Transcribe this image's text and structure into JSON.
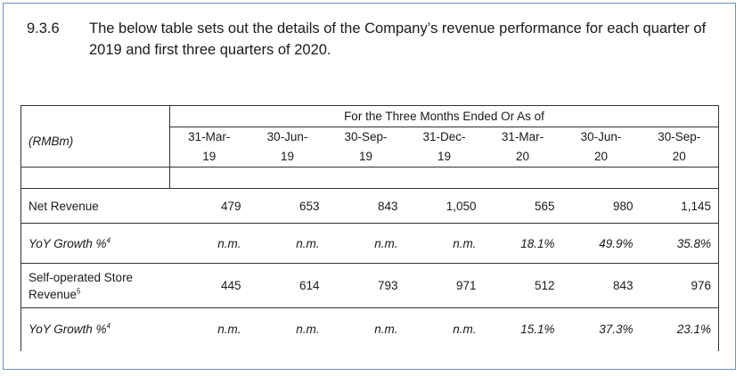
{
  "paragraph": {
    "number": "9.3.6",
    "text": "The below table sets out the details of the Company’s revenue performance for each quarter of 2019 and first three quarters of 2020."
  },
  "table": {
    "unit_label": "(RMBm)",
    "period_header": "For the Three Months Ended Or As of",
    "columns": [
      {
        "line1": "31-Mar-",
        "line2": "19"
      },
      {
        "line1": "30-Jun-",
        "line2": "19"
      },
      {
        "line1": "30-Sep-",
        "line2": "19"
      },
      {
        "line1": "31-Dec-",
        "line2": "19"
      },
      {
        "line1": "31-Mar-",
        "line2": "20"
      },
      {
        "line1": "30-Jun-",
        "line2": "20"
      },
      {
        "line1": "30-Sep-",
        "line2": "20"
      }
    ],
    "rows": [
      {
        "label": "Net Revenue",
        "footnote": "",
        "values": [
          "479",
          "653",
          "843",
          "1,050",
          "565",
          "980",
          "1,145"
        ]
      },
      {
        "label": "YoY Growth %",
        "footnote": "4",
        "values": [
          "n.m.",
          "n.m.",
          "n.m.",
          "n.m.",
          "18.1%",
          "49.9%",
          "35.8%"
        ]
      },
      {
        "label_line1": "Self-operated Store",
        "label_line2": "Revenue",
        "footnote": "5",
        "values": [
          "445",
          "614",
          "793",
          "971",
          "512",
          "843",
          "976"
        ]
      },
      {
        "label": "YoY Growth %",
        "footnote": "4",
        "values": [
          "n.m.",
          "n.m.",
          "n.m.",
          "n.m.",
          "15.1%",
          "37.3%",
          "23.1%"
        ]
      }
    ]
  }
}
